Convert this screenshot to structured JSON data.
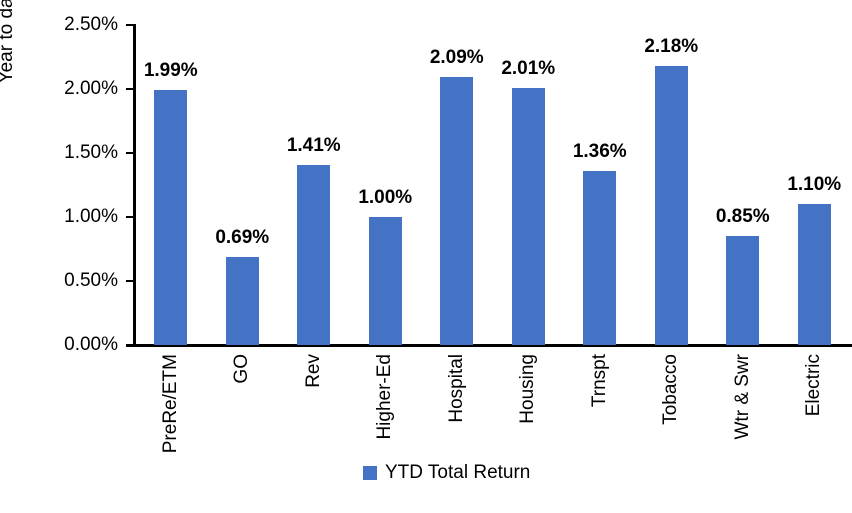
{
  "chart_data": {
    "type": "bar",
    "title": "",
    "ylabel": "Year to date total return, %",
    "xlabel": "",
    "categories": [
      "PreRe/ETM",
      "GO",
      "Rev",
      "Higher-Ed",
      "Hospital",
      "Housing",
      "Trnspt",
      "Tobacco",
      "Wtr & Swr",
      "Electric"
    ],
    "values": [
      1.99,
      0.69,
      1.41,
      1.0,
      2.09,
      2.01,
      1.36,
      2.18,
      0.85,
      1.1
    ],
    "data_labels": [
      "1.99%",
      "0.69%",
      "1.41%",
      "1.00%",
      "2.09%",
      "2.01%",
      "1.36%",
      "2.18%",
      "0.85%",
      "1.10%"
    ],
    "ylim": [
      0,
      2.5
    ],
    "y_tick_values": [
      0,
      0.5,
      1.0,
      1.5,
      2.0,
      2.5
    ],
    "y_tick_labels": [
      "0.00%",
      "0.50%",
      "1.00%",
      "1.50%",
      "2.00%",
      "2.50%"
    ],
    "grid": false,
    "bar_color": "#4472C4",
    "axis_color": "#000000",
    "legend_position": "bottom",
    "legend": [
      {
        "label": "YTD Total Return",
        "color": "#4472C4"
      }
    ]
  }
}
